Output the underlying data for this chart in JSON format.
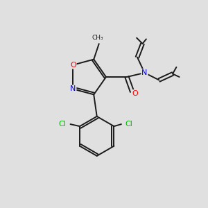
{
  "background_color": "#e0e0e0",
  "bond_color": "#1a1a1a",
  "atom_colors": {
    "O": "#ff0000",
    "N": "#0000cc",
    "Cl": "#00bb00",
    "C": "#1a1a1a"
  },
  "figsize": [
    3.0,
    3.0
  ],
  "dpi": 100,
  "xlim": [
    0,
    10
  ],
  "ylim": [
    0,
    10
  ]
}
